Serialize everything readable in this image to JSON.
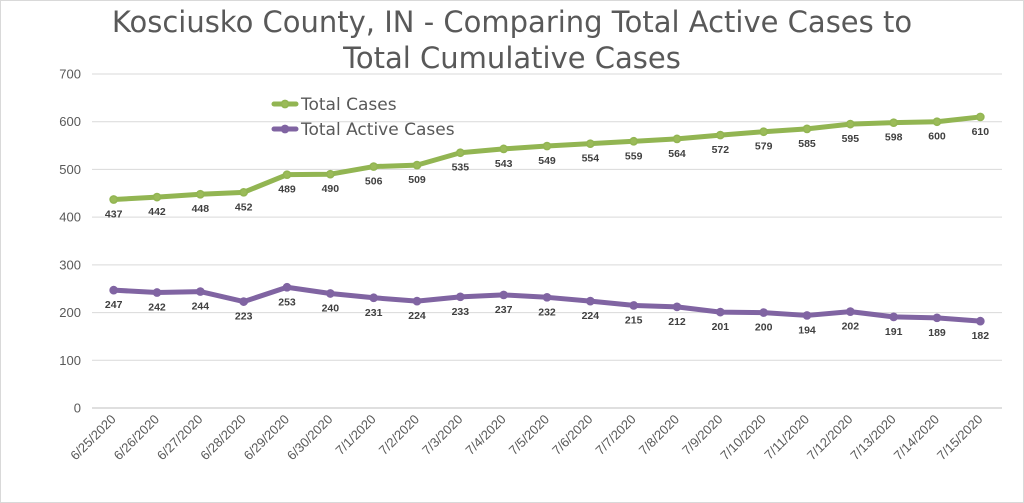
{
  "chart_data": {
    "type": "line",
    "title_line1": "Kosciusko County, IN - Comparing Total Active Cases to",
    "title_line2": "Total Cumulative Cases",
    "categories": [
      "6/25/2020",
      "6/26/2020",
      "6/27/2020",
      "6/28/2020",
      "6/29/2020",
      "6/30/2020",
      "7/1/2020",
      "7/2/2020",
      "7/3/2020",
      "7/4/2020",
      "7/5/2020",
      "7/6/2020",
      "7/7/2020",
      "7/8/2020",
      "7/9/2020",
      "7/10/2020",
      "7/11/2020",
      "7/12/2020",
      "7/13/2020",
      "7/14/2020",
      "7/15/2020"
    ],
    "ylim": [
      0,
      700
    ],
    "yticks": [
      0,
      100,
      200,
      300,
      400,
      500,
      600,
      700
    ],
    "grid": true,
    "legend_position": "top-left",
    "series": [
      {
        "name": "Total Cases",
        "color": "#92b552",
        "marker_color": "#9bbb59",
        "label_position": "below",
        "values": [
          437,
          442,
          448,
          452,
          489,
          490,
          506,
          509,
          535,
          543,
          549,
          554,
          559,
          564,
          572,
          579,
          585,
          595,
          598,
          600,
          610
        ]
      },
      {
        "name": "Total Active Cases",
        "color": "#8064a2",
        "marker_color": "#8064a2",
        "label_position": "below",
        "values": [
          247,
          242,
          244,
          223,
          253,
          240,
          231,
          224,
          233,
          237,
          232,
          224,
          215,
          212,
          201,
          200,
          194,
          202,
          191,
          189,
          182
        ]
      }
    ]
  }
}
